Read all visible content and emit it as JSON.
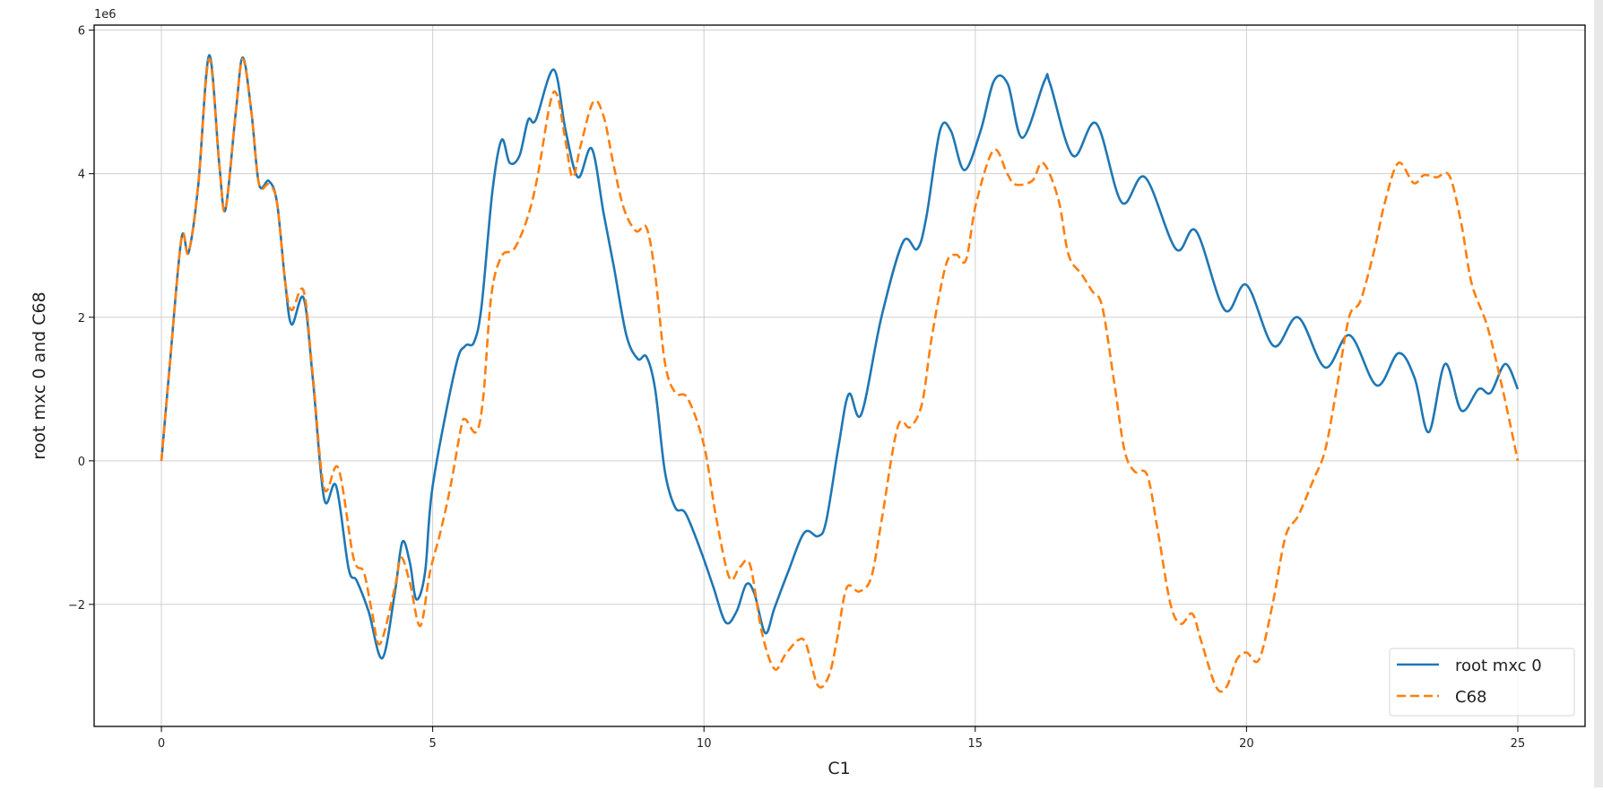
{
  "chart_data": {
    "type": "line",
    "title": "",
    "xlabel": "C1",
    "ylabel": "root mxc 0 and C68",
    "y_offset_label": "1e6",
    "xlim": [
      -1.24,
      26.24
    ],
    "ylim": [
      -3.7,
      6.07
    ],
    "y_scale_factor": 1000000,
    "xticks": [
      0,
      5,
      10,
      15,
      20,
      25
    ],
    "xtick_labels": [
      "0",
      "5",
      "10",
      "15",
      "20",
      "25"
    ],
    "yticks": [
      -2,
      0,
      2,
      4,
      6
    ],
    "ytick_labels": [
      "−2",
      "0",
      "2",
      "4",
      "6"
    ],
    "grid": true,
    "legend_placement": "lower-right",
    "series": [
      {
        "name": "root mxc 0",
        "color": "#1f77b4",
        "style": "solid",
        "points": [
          [
            0,
            0
          ],
          [
            0.15,
            1.3
          ],
          [
            0.37,
            3.1
          ],
          [
            0.5,
            2.9
          ],
          [
            0.68,
            3.85
          ],
          [
            0.88,
            5.65
          ],
          [
            1.07,
            4.1
          ],
          [
            1.18,
            3.5
          ],
          [
            1.37,
            4.85
          ],
          [
            1.5,
            5.62
          ],
          [
            1.66,
            4.85
          ],
          [
            1.8,
            3.85
          ],
          [
            1.98,
            3.9
          ],
          [
            2.13,
            3.6
          ],
          [
            2.28,
            2.5
          ],
          [
            2.4,
            1.9
          ],
          [
            2.62,
            2.27
          ],
          [
            2.79,
            1.15
          ],
          [
            3.0,
            -0.53
          ],
          [
            3.22,
            -0.35
          ],
          [
            3.45,
            -1.5
          ],
          [
            3.6,
            -1.67
          ],
          [
            3.82,
            -2.1
          ],
          [
            4.07,
            -2.75
          ],
          [
            4.3,
            -1.85
          ],
          [
            4.44,
            -1.13
          ],
          [
            4.58,
            -1.42
          ],
          [
            4.7,
            -1.93
          ],
          [
            4.86,
            -1.55
          ],
          [
            5.0,
            -0.35
          ],
          [
            5.42,
            1.3
          ],
          [
            5.6,
            1.6
          ],
          [
            5.76,
            1.65
          ],
          [
            5.9,
            2.15
          ],
          [
            6.1,
            3.75
          ],
          [
            6.27,
            4.47
          ],
          [
            6.42,
            4.15
          ],
          [
            6.6,
            4.25
          ],
          [
            6.76,
            4.75
          ],
          [
            6.9,
            4.75
          ],
          [
            7.23,
            5.45
          ],
          [
            7.45,
            4.6
          ],
          [
            7.68,
            3.95
          ],
          [
            7.93,
            4.35
          ],
          [
            8.15,
            3.45
          ],
          [
            8.34,
            2.7
          ],
          [
            8.57,
            1.75
          ],
          [
            8.78,
            1.42
          ],
          [
            8.94,
            1.45
          ],
          [
            9.1,
            1.0
          ],
          [
            9.28,
            -0.15
          ],
          [
            9.47,
            -0.65
          ],
          [
            9.66,
            -0.73
          ],
          [
            9.94,
            -1.25
          ],
          [
            10.17,
            -1.75
          ],
          [
            10.4,
            -2.25
          ],
          [
            10.6,
            -2.1
          ],
          [
            10.78,
            -1.72
          ],
          [
            10.93,
            -1.85
          ],
          [
            11.13,
            -2.4
          ],
          [
            11.3,
            -2.05
          ],
          [
            11.55,
            -1.55
          ],
          [
            11.85,
            -1.0
          ],
          [
            12.1,
            -1.05
          ],
          [
            12.25,
            -0.85
          ],
          [
            12.48,
            0.2
          ],
          [
            12.67,
            0.93
          ],
          [
            12.9,
            0.65
          ],
          [
            13.27,
            2.0
          ],
          [
            13.67,
            3.05
          ],
          [
            13.93,
            2.95
          ],
          [
            14.1,
            3.4
          ],
          [
            14.35,
            4.6
          ],
          [
            14.55,
            4.6
          ],
          [
            14.8,
            4.05
          ],
          [
            15.1,
            4.6
          ],
          [
            15.35,
            5.3
          ],
          [
            15.6,
            5.25
          ],
          [
            15.87,
            4.5
          ],
          [
            16.28,
            5.3
          ],
          [
            16.38,
            5.25
          ],
          [
            16.8,
            4.25
          ],
          [
            17.23,
            4.7
          ],
          [
            17.7,
            3.6
          ],
          [
            18.13,
            3.95
          ],
          [
            18.7,
            2.95
          ],
          [
            19.07,
            3.2
          ],
          [
            19.6,
            2.1
          ],
          [
            20.0,
            2.45
          ],
          [
            20.5,
            1.6
          ],
          [
            20.95,
            2.0
          ],
          [
            21.45,
            1.3
          ],
          [
            21.9,
            1.75
          ],
          [
            22.4,
            1.05
          ],
          [
            22.8,
            1.5
          ],
          [
            23.1,
            1.15
          ],
          [
            23.36,
            0.4
          ],
          [
            23.66,
            1.35
          ],
          [
            23.96,
            0.7
          ],
          [
            24.28,
            1.0
          ],
          [
            24.5,
            0.95
          ],
          [
            24.77,
            1.35
          ],
          [
            25.0,
            1.0
          ]
        ]
      },
      {
        "name": "C68",
        "color": "#ff7f0e",
        "style": "dashed",
        "points": [
          [
            0,
            0
          ],
          [
            0.15,
            1.3
          ],
          [
            0.37,
            3.1
          ],
          [
            0.5,
            2.9
          ],
          [
            0.68,
            3.85
          ],
          [
            0.88,
            5.6
          ],
          [
            1.07,
            4.1
          ],
          [
            1.18,
            3.5
          ],
          [
            1.37,
            4.85
          ],
          [
            1.5,
            5.6
          ],
          [
            1.66,
            4.85
          ],
          [
            1.8,
            3.85
          ],
          [
            1.98,
            3.85
          ],
          [
            2.13,
            3.6
          ],
          [
            2.28,
            2.5
          ],
          [
            2.4,
            2.1
          ],
          [
            2.62,
            2.37
          ],
          [
            2.79,
            1.2
          ],
          [
            3.0,
            -0.38
          ],
          [
            3.26,
            -0.1
          ],
          [
            3.54,
            -1.35
          ],
          [
            3.73,
            -1.55
          ],
          [
            3.88,
            -2.1
          ],
          [
            4.03,
            -2.55
          ],
          [
            4.3,
            -1.77
          ],
          [
            4.42,
            -1.35
          ],
          [
            4.58,
            -1.7
          ],
          [
            4.77,
            -2.3
          ],
          [
            4.95,
            -1.55
          ],
          [
            5.14,
            -1.0
          ],
          [
            5.33,
            -0.35
          ],
          [
            5.52,
            0.45
          ],
          [
            5.6,
            0.58
          ],
          [
            5.8,
            0.4
          ],
          [
            5.93,
            0.87
          ],
          [
            6.08,
            2.3
          ],
          [
            6.27,
            2.85
          ],
          [
            6.5,
            2.95
          ],
          [
            6.74,
            3.37
          ],
          [
            6.93,
            3.95
          ],
          [
            7.17,
            5.0
          ],
          [
            7.3,
            5.08
          ],
          [
            7.45,
            4.45
          ],
          [
            7.58,
            3.95
          ],
          [
            7.73,
            4.4
          ],
          [
            7.96,
            5.0
          ],
          [
            8.15,
            4.8
          ],
          [
            8.34,
            4.1
          ],
          [
            8.53,
            3.5
          ],
          [
            8.75,
            3.2
          ],
          [
            8.94,
            3.25
          ],
          [
            9.1,
            2.6
          ],
          [
            9.28,
            1.37
          ],
          [
            9.47,
            0.95
          ],
          [
            9.7,
            0.87
          ],
          [
            10.0,
            0.22
          ],
          [
            10.22,
            -0.77
          ],
          [
            10.47,
            -1.63
          ],
          [
            10.66,
            -1.48
          ],
          [
            10.85,
            -1.45
          ],
          [
            11.07,
            -2.4
          ],
          [
            11.3,
            -2.9
          ],
          [
            11.5,
            -2.7
          ],
          [
            11.73,
            -2.5
          ],
          [
            11.88,
            -2.55
          ],
          [
            12.1,
            -3.13
          ],
          [
            12.3,
            -3.0
          ],
          [
            12.45,
            -2.5
          ],
          [
            12.63,
            -1.77
          ],
          [
            12.86,
            -1.82
          ],
          [
            13.08,
            -1.63
          ],
          [
            13.27,
            -0.85
          ],
          [
            13.57,
            0.47
          ],
          [
            13.8,
            0.47
          ],
          [
            14.02,
            0.8
          ],
          [
            14.2,
            1.73
          ],
          [
            14.46,
            2.73
          ],
          [
            14.65,
            2.87
          ],
          [
            14.83,
            2.8
          ],
          [
            15.02,
            3.6
          ],
          [
            15.34,
            4.33
          ],
          [
            15.59,
            4.0
          ],
          [
            15.74,
            3.85
          ],
          [
            16.05,
            3.9
          ],
          [
            16.25,
            4.15
          ],
          [
            16.53,
            3.65
          ],
          [
            16.72,
            2.87
          ],
          [
            16.96,
            2.6
          ],
          [
            17.15,
            2.37
          ],
          [
            17.34,
            2.15
          ],
          [
            17.56,
            1.1
          ],
          [
            17.75,
            0.15
          ],
          [
            17.94,
            -0.15
          ],
          [
            18.17,
            -0.2
          ],
          [
            18.37,
            -1.0
          ],
          [
            18.6,
            -2.0
          ],
          [
            18.79,
            -2.27
          ],
          [
            19.0,
            -2.13
          ],
          [
            19.16,
            -2.5
          ],
          [
            19.44,
            -3.15
          ],
          [
            19.63,
            -3.15
          ],
          [
            19.82,
            -2.77
          ],
          [
            20.0,
            -2.67
          ],
          [
            20.23,
            -2.77
          ],
          [
            20.48,
            -2.0
          ],
          [
            20.72,
            -1.05
          ],
          [
            20.95,
            -0.77
          ],
          [
            21.23,
            -0.27
          ],
          [
            21.45,
            0.15
          ],
          [
            21.66,
            1.0
          ],
          [
            21.89,
            2.0
          ],
          [
            22.1,
            2.23
          ],
          [
            22.36,
            2.95
          ],
          [
            22.55,
            3.6
          ],
          [
            22.8,
            4.15
          ],
          [
            23.08,
            3.87
          ],
          [
            23.27,
            3.98
          ],
          [
            23.5,
            3.95
          ],
          [
            23.74,
            3.97
          ],
          [
            23.96,
            3.3
          ],
          [
            24.15,
            2.47
          ],
          [
            24.44,
            1.87
          ],
          [
            24.72,
            1.0
          ],
          [
            25.0,
            0
          ]
        ]
      }
    ]
  }
}
